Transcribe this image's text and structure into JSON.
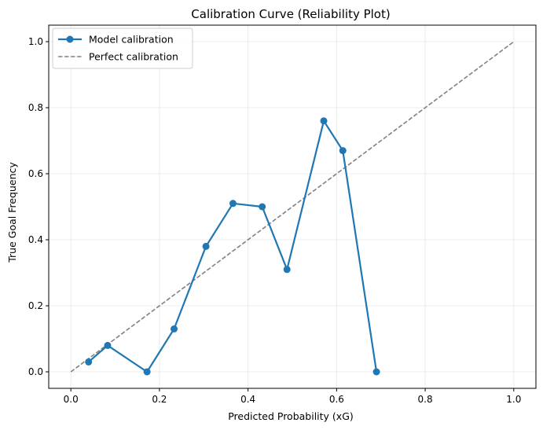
{
  "chart_data": {
    "type": "line",
    "title": "Calibration Curve (Reliability Plot)",
    "xlabel": "Predicted Probability (xG)",
    "ylabel": "True Goal Frequency",
    "xlim": [
      -0.05,
      1.05
    ],
    "ylim": [
      -0.05,
      1.05
    ],
    "grid": true,
    "legend_position": "top-left",
    "x_ticks": [
      "0.0",
      "0.2",
      "0.4",
      "0.6",
      "0.8",
      "1.0"
    ],
    "y_ticks": [
      "0.0",
      "0.2",
      "0.4",
      "0.6",
      "0.8",
      "1.0"
    ],
    "series": [
      {
        "name": "Model calibration",
        "style": "solid-markers",
        "color": "#1f77b4",
        "x": [
          0.04,
          0.083,
          0.172,
          0.233,
          0.305,
          0.366,
          0.432,
          0.488,
          0.571,
          0.614,
          0.69
        ],
        "y": [
          0.03,
          0.08,
          0.0,
          0.13,
          0.38,
          0.51,
          0.5,
          0.31,
          0.76,
          0.67,
          0.0
        ]
      },
      {
        "name": "Perfect calibration",
        "style": "dashed",
        "color": "#808080",
        "x": [
          0.0,
          1.0
        ],
        "y": [
          0.0,
          1.0
        ]
      }
    ]
  }
}
